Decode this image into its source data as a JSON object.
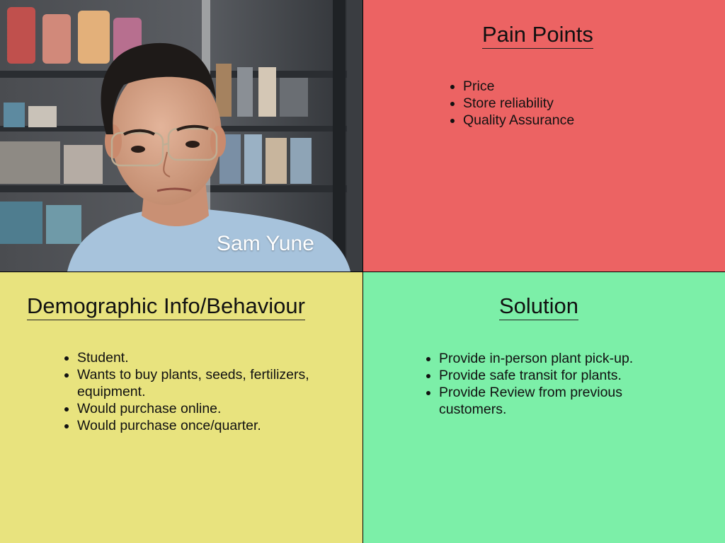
{
  "colors": {
    "pain_bg": "#ec6363",
    "demographic_bg": "#e8e37e",
    "solution_bg": "#7cefa8",
    "divider": "#000000"
  },
  "persona": {
    "name": "Sam Yune",
    "photo_icon": "person-portrait"
  },
  "pain_points": {
    "title": " Pain Points",
    "items": [
      "Price",
      "Store reliability",
      "Quality Assurance"
    ]
  },
  "demographic": {
    "title": "Demographic Info/Behaviour",
    "items": [
      "Student.",
      "Wants to buy plants, seeds, fertilizers, equipment.",
      "Would purchase online.",
      "Would purchase once/quarter."
    ]
  },
  "solution": {
    "title": "Solution",
    "items": [
      "Provide in-person plant pick-up.",
      "Provide safe transit for plants.",
      "Provide Review from previous customers."
    ]
  }
}
